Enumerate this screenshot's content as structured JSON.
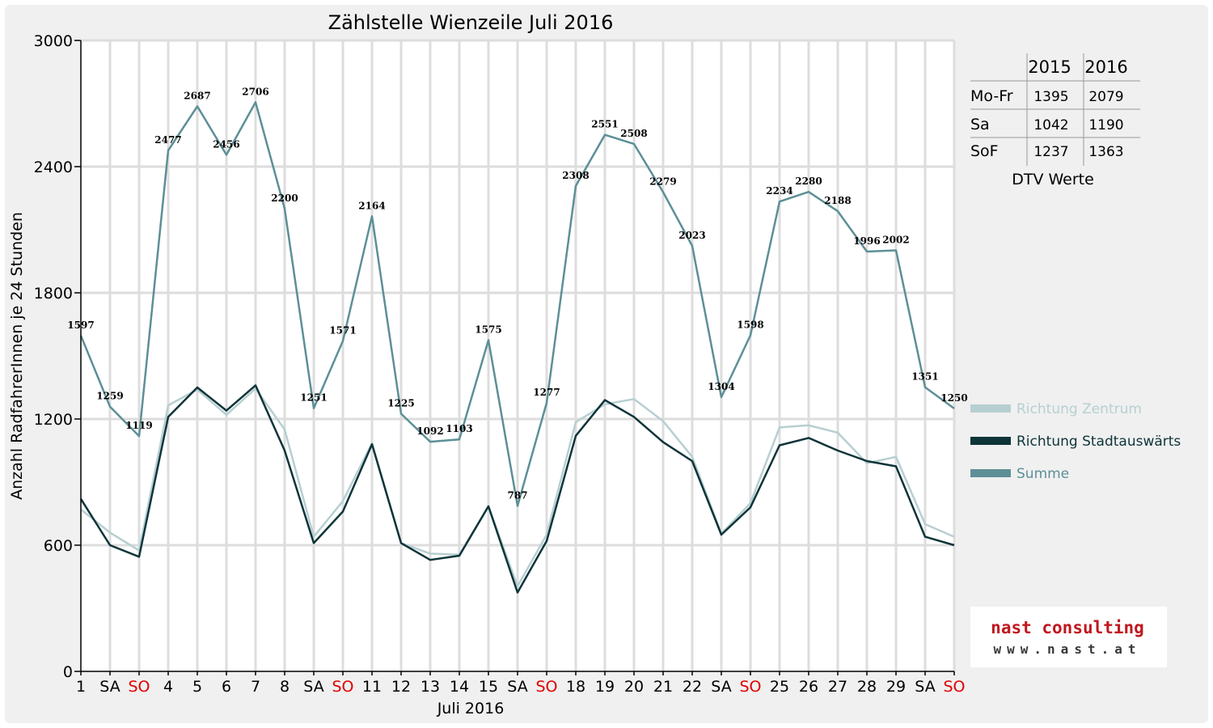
{
  "chart_data": {
    "type": "line",
    "title": "Zählstelle Wienzeile Juli 2016",
    "xlabel": "Juli 2016",
    "ylabel": "Anzahl RadfahrerInnen je 24 Stunden",
    "ylim": [
      0,
      3000
    ],
    "yticks": [
      0,
      600,
      1200,
      1800,
      2400,
      3000
    ],
    "grid": true,
    "legend_position": "right",
    "categories": [
      "1",
      "SA",
      "SO",
      "4",
      "5",
      "6",
      "7",
      "8",
      "SA",
      "SO",
      "11",
      "12",
      "13",
      "14",
      "15",
      "SA",
      "SO",
      "18",
      "19",
      "20",
      "21",
      "22",
      "SA",
      "SO",
      "25",
      "26",
      "27",
      "28",
      "29",
      "SA",
      "SO"
    ],
    "weekend_category_color": "#e00000",
    "series": [
      {
        "name": "Richtung Zentrum",
        "color": "#b7cfd1",
        "values": [
          770,
          660,
          575,
          1265,
          1340,
          1220,
          1345,
          1150,
          640,
          810,
          1085,
          610,
          560,
          555,
          785,
          405,
          650,
          1185,
          1270,
          1295,
          1190,
          1020,
          655,
          800,
          1160,
          1170,
          1135,
          990,
          1020,
          700,
          640
        ]
      },
      {
        "name": "Richtung Stadtauswärts",
        "color": "#0e3439",
        "values": [
          820,
          600,
          545,
          1210,
          1350,
          1240,
          1360,
          1050,
          610,
          760,
          1080,
          610,
          530,
          550,
          785,
          375,
          620,
          1120,
          1290,
          1210,
          1090,
          1000,
          650,
          780,
          1075,
          1110,
          1050,
          1000,
          975,
          640,
          600
        ]
      },
      {
        "name": "Summe",
        "color": "#5d8f96",
        "values": [
          1597,
          1259,
          1119,
          2477,
          2687,
          2456,
          2706,
          2200,
          1251,
          1571,
          2164,
          1225,
          1092,
          1103,
          1575,
          787,
          1277,
          2308,
          2551,
          2508,
          2279,
          2023,
          1304,
          1598,
          2234,
          2280,
          2188,
          1996,
          2002,
          1351,
          1250
        ]
      }
    ],
    "data_labels": [
      "1597",
      "1259",
      "1119",
      "2477",
      "2687",
      "2456",
      "2706",
      "2200",
      "1251",
      "1571",
      "2164",
      "1225",
      "1092",
      "1103",
      "1575",
      "787",
      "1277",
      "2308",
      "2551",
      "2508",
      "2279",
      "2023",
      "1304",
      "1598",
      "2234",
      "2280",
      "2188",
      "1996",
      "2002",
      "1351",
      "1250"
    ]
  },
  "dtv_table": {
    "headers": [
      "",
      "2015",
      "2016"
    ],
    "rows": [
      [
        "Mo-Fr",
        "1395",
        "2079"
      ],
      [
        "Sa",
        "1042",
        "1190"
      ],
      [
        "SoF",
        "1237",
        "1363"
      ]
    ],
    "caption": "DTV Werte"
  },
  "logo": {
    "line1": "nast consulting",
    "line2": "www.nast.at"
  }
}
